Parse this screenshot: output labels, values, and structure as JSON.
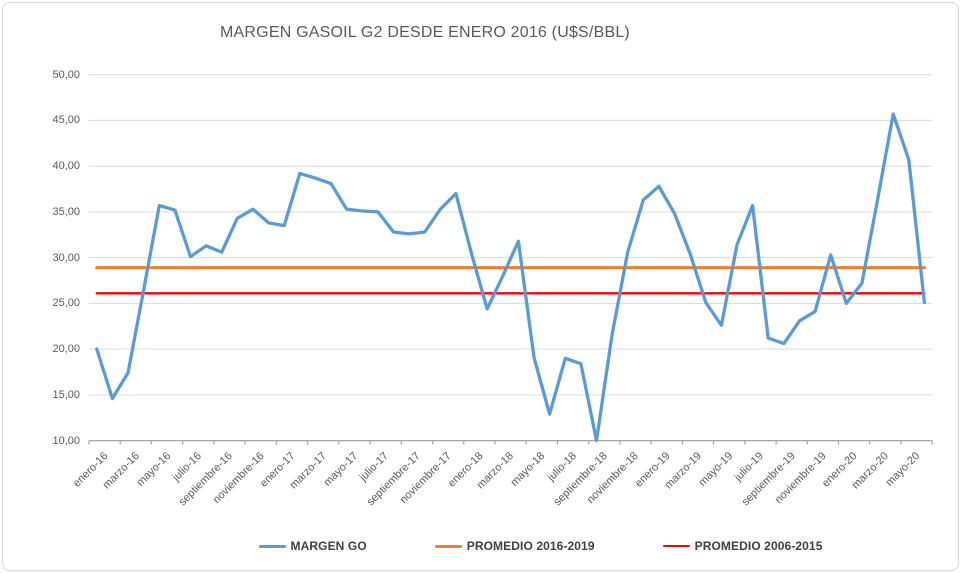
{
  "title": "MARGEN GASOIL G2 DESDE ENERO 2016 (U$S/BBL)",
  "colors": {
    "margen_go": "#5B9BD5",
    "promedio_2016_2019": "#ED7D31",
    "promedio_2006_2015": "#FF0000",
    "gridline": "#D9D9D9",
    "axis_line": "#A6A6A6",
    "label_text": "#595959",
    "legend_text": "#3F3F3F",
    "border": "#D6D6D6"
  },
  "y_axis": {
    "tick_labels": [
      "50,00",
      "45,00",
      "40,00",
      "35,00",
      "30,00",
      "25,00",
      "20,00",
      "15,00",
      "10,00"
    ]
  },
  "x_axis": {
    "tick_labels": [
      "enero-16",
      "marzo-16",
      "mayo-16",
      "julio-16",
      "septiembre-16",
      "noviembre-16",
      "enero-17",
      "marzo-17",
      "mayo-17",
      "julio-17",
      "septiembre-17",
      "noviembre-17",
      "enero-18",
      "marzo-18",
      "mayo-18",
      "julio-18",
      "septiembre-18",
      "noviembre-18",
      "enero-19",
      "marzo-19",
      "mayo-19",
      "julio-19",
      "septiembre-19",
      "noviembre-19",
      "enero-20",
      "marzo-20",
      "mayo-20"
    ],
    "label_every_n_months": 2
  },
  "legend": {
    "items": [
      {
        "label": "MARGEN GO",
        "color_key": "margen_go",
        "thickness": 3
      },
      {
        "label": "PROMEDIO 2016-2019",
        "color_key": "promedio_2016_2019",
        "thickness": 3
      },
      {
        "label": "PROMEDIO 2006-2015",
        "color_key": "promedio_2006_2015",
        "thickness": 2
      }
    ]
  },
  "chart_data": {
    "type": "line",
    "title": "MARGEN GASOIL G2 DESDE ENERO 2016 (U$S/BBL)",
    "ylabel": "U$S/BBL",
    "ylim": [
      10,
      50
    ],
    "y_tick_step": 5,
    "grid": "horizontal",
    "legend_position": "bottom",
    "x_start_month": "enero-16",
    "x_tick_labels_shown": [
      "enero-16",
      "marzo-16",
      "mayo-16",
      "julio-16",
      "septiembre-16",
      "noviembre-16",
      "enero-17",
      "marzo-17",
      "mayo-17",
      "julio-17",
      "septiembre-17",
      "noviembre-17",
      "enero-18",
      "marzo-18",
      "mayo-18",
      "julio-18",
      "septiembre-18",
      "noviembre-18",
      "enero-19",
      "marzo-19",
      "mayo-19",
      "julio-19",
      "septiembre-19",
      "noviembre-19",
      "enero-20",
      "marzo-20",
      "mayo-20"
    ],
    "series": [
      {
        "name": "MARGEN GO",
        "kind": "monthly",
        "values": [
          20.0,
          14.6,
          17.4,
          26.5,
          35.7,
          35.2,
          30.1,
          31.3,
          30.6,
          34.3,
          35.3,
          33.8,
          33.5,
          39.2,
          38.7,
          38.1,
          35.3,
          35.1,
          35.0,
          32.8,
          32.6,
          32.8,
          35.3,
          37.0,
          30.4,
          24.4,
          28.0,
          31.8,
          19.1,
          12.9,
          19.0,
          18.4,
          10.0,
          21.6,
          30.6,
          36.3,
          37.8,
          34.8,
          30.4,
          25.1,
          22.6,
          31.4,
          35.7,
          21.2,
          20.6,
          23.1,
          24.1,
          30.3,
          25.0,
          27.2,
          36.3,
          45.7,
          40.7,
          25.1
        ]
      },
      {
        "name": "PROMEDIO 2016-2019",
        "kind": "constant",
        "value": 28.9
      },
      {
        "name": "PROMEDIO 2006-2015",
        "kind": "constant",
        "value": 26.1
      }
    ]
  }
}
